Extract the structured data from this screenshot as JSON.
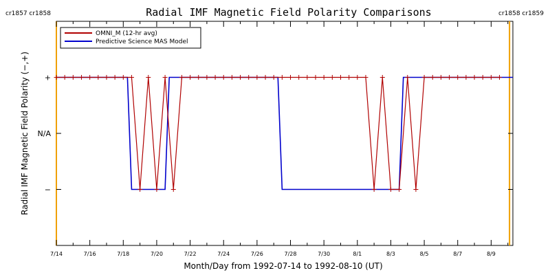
{
  "colors": {
    "omni": "#b00000",
    "mas": "#0000cc",
    "carrington": "#f0a000",
    "axis": "#000000"
  },
  "chart_data": {
    "type": "line",
    "title": "Radial IMF Magnetic Field Polarity Comparisons",
    "xlabel": "Month/Day from 1992-07-14 to 1992-08-10 (UT)",
    "ylabel": "Radial IMF Magnetic Field Polarity (−,+)",
    "x_unit": "days",
    "xlim": [
      0,
      27.3
    ],
    "ylim": [
      -2,
      2
    ],
    "y_ticks": [
      {
        "value": 1,
        "label": "+"
      },
      {
        "value": 0,
        "label": "N/A"
      },
      {
        "value": -1,
        "label": "−"
      }
    ],
    "x_ticks": [
      {
        "value": 0,
        "label": "7/14"
      },
      {
        "value": 2,
        "label": "7/16"
      },
      {
        "value": 4,
        "label": "7/18"
      },
      {
        "value": 6,
        "label": "7/20"
      },
      {
        "value": 8,
        "label": "7/22"
      },
      {
        "value": 10,
        "label": "7/24"
      },
      {
        "value": 12,
        "label": "7/26"
      },
      {
        "value": 14,
        "label": "7/28"
      },
      {
        "value": 16,
        "label": "7/30"
      },
      {
        "value": 18,
        "label": "8/1"
      },
      {
        "value": 20,
        "label": "8/3"
      },
      {
        "value": 22,
        "label": "8/5"
      },
      {
        "value": 24,
        "label": "8/7"
      },
      {
        "value": 26,
        "label": "8/9"
      }
    ],
    "carrington_rotations": [
      {
        "x": 0,
        "left_label": "cr1857",
        "right_label": "cr1858",
        "side": "left"
      },
      {
        "x": 27.1,
        "left_label": "cr1858",
        "right_label": "cr1859",
        "side": "right"
      }
    ],
    "legend": {
      "position": "top-left",
      "entries": [
        {
          "label": "OMNI_M (12-hr avg)",
          "series": "omni"
        },
        {
          "label": "Predictive Science MAS Model",
          "series": "mas"
        }
      ]
    },
    "series": [
      {
        "name": "OMNI_M (12-hr avg)",
        "key": "omni",
        "markers": "plus",
        "x": [
          0,
          0.5,
          1,
          1.5,
          2,
          2.5,
          3,
          3.5,
          4,
          4.5,
          5,
          5.5,
          6,
          6.5,
          7,
          7.5,
          8,
          8.5,
          9,
          9.5,
          10,
          10.5,
          11,
          11.5,
          12,
          12.5,
          13,
          13.5,
          14,
          14.5,
          15,
          15.5,
          16,
          16.5,
          17,
          17.5,
          18,
          18.5,
          19,
          19.5,
          20,
          20.5,
          21,
          21.5,
          22,
          22.5,
          23,
          23.5,
          24,
          24.5,
          25,
          25.5,
          26,
          26.5
        ],
        "y": [
          1,
          1,
          1,
          1,
          1,
          1,
          1,
          1,
          1,
          1,
          -1,
          1,
          -1,
          1,
          -1,
          1,
          1,
          1,
          1,
          1,
          1,
          1,
          1,
          1,
          1,
          1,
          1,
          1,
          1,
          1,
          1,
          1,
          1,
          1,
          1,
          1,
          1,
          1,
          -1,
          1,
          -1,
          -1,
          1,
          -1,
          1,
          1,
          1,
          1,
          1,
          1,
          1,
          1,
          1,
          1
        ]
      },
      {
        "name": "Predictive Science MAS Model",
        "key": "mas",
        "step_x": [
          0,
          4.25,
          4.5,
          6.5,
          6.75,
          13.25,
          13.5,
          20.5,
          20.75,
          27.3
        ],
        "step_y": [
          1,
          1,
          -1,
          -1,
          1,
          1,
          -1,
          -1,
          1,
          1
        ]
      }
    ],
    "grid": false
  }
}
